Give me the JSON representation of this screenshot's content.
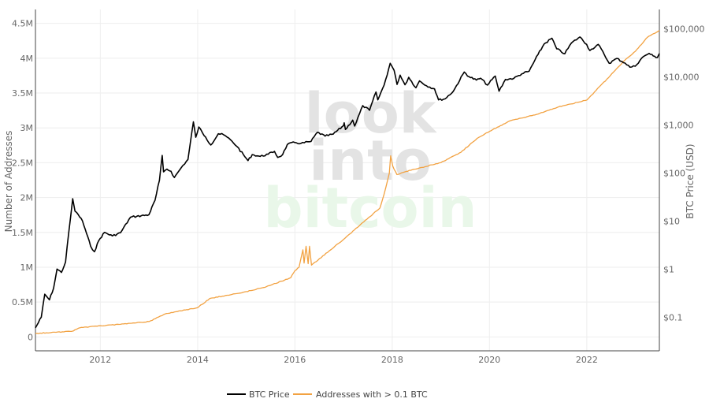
{
  "watermark": {
    "line1": "look",
    "line2": "into",
    "line3": "bitcoin"
  },
  "chart_data": {
    "type": "line",
    "title": "",
    "xlabel": "",
    "ylabel_left": "Number of Addresses",
    "ylabel_right": "BTC Price (USD)",
    "x_range": [
      "2010-09-01",
      "2023-06-30"
    ],
    "y_left_range": [
      -200000,
      4700000
    ],
    "y_right_range": [
      0.02,
      250000
    ],
    "y_right_scale": "log",
    "x_ticks": [
      "2012",
      "2014",
      "2016",
      "2018",
      "2020",
      "2022"
    ],
    "y_left_ticks": [
      "0",
      "0.5M",
      "1M",
      "1.5M",
      "2M",
      "2.5M",
      "3M",
      "3.5M",
      "4M",
      "4.5M"
    ],
    "y_right_ticks": [
      "$0.1",
      "$1",
      "$10",
      "$100",
      "$1,000",
      "$10,000",
      "$100,000"
    ],
    "grid": true,
    "legend_position": "bottom-center",
    "series": [
      {
        "name": "BTC Price",
        "axis": "right",
        "color": "#000000",
        "points": [
          [
            "2010-09-01",
            0.06
          ],
          [
            "2010-10-15",
            0.1
          ],
          [
            "2010-11-10",
            0.3
          ],
          [
            "2010-12-15",
            0.23
          ],
          [
            "2011-01-15",
            0.4
          ],
          [
            "2011-02-10",
            1.0
          ],
          [
            "2011-03-15",
            0.85
          ],
          [
            "2011-04-15",
            1.4
          ],
          [
            "2011-05-10",
            6.0
          ],
          [
            "2011-06-08",
            29.0
          ],
          [
            "2011-06-25",
            16.0
          ],
          [
            "2011-07-20",
            13.5
          ],
          [
            "2011-08-20",
            10.0
          ],
          [
            "2011-09-20",
            5.5
          ],
          [
            "2011-10-20",
            3.0
          ],
          [
            "2011-11-18",
            2.3
          ],
          [
            "2011-12-20",
            3.9
          ],
          [
            "2012-02-01",
            5.8
          ],
          [
            "2012-04-01",
            4.9
          ],
          [
            "2012-06-01",
            5.7
          ],
          [
            "2012-08-15",
            12.0
          ],
          [
            "2012-10-01",
            12.5
          ],
          [
            "2012-12-31",
            13.5
          ],
          [
            "2013-02-15",
            27.0
          ],
          [
            "2013-03-20",
            70.0
          ],
          [
            "2013-04-10",
            230.0
          ],
          [
            "2013-04-20",
            105.0
          ],
          [
            "2013-05-15",
            120.0
          ],
          [
            "2013-06-15",
            108.0
          ],
          [
            "2013-07-10",
            80.0
          ],
          [
            "2013-09-01",
            130.0
          ],
          [
            "2013-10-20",
            190.0
          ],
          [
            "2013-11-30",
            1150.0
          ],
          [
            "2013-12-18",
            550.0
          ],
          [
            "2014-01-10",
            900.0
          ],
          [
            "2014-02-10",
            650.0
          ],
          [
            "2014-03-01",
            560.0
          ],
          [
            "2014-04-10",
            380.0
          ],
          [
            "2014-06-05",
            650.0
          ],
          [
            "2014-07-15",
            620.0
          ],
          [
            "2014-09-15",
            460.0
          ],
          [
            "2014-10-25",
            350.0
          ],
          [
            "2015-01-14",
            180.0
          ],
          [
            "2015-02-15",
            240.0
          ],
          [
            "2015-04-15",
            220.0
          ],
          [
            "2015-06-15",
            245.0
          ],
          [
            "2015-08-01",
            280.0
          ],
          [
            "2015-08-25",
            210.0
          ],
          [
            "2015-10-01",
            240.0
          ],
          [
            "2015-11-05",
            390.0
          ],
          [
            "2015-12-31",
            430.0
          ],
          [
            "2016-02-15",
            410.0
          ],
          [
            "2016-05-01",
            450.0
          ],
          [
            "2016-06-18",
            700.0
          ],
          [
            "2016-08-15",
            580.0
          ],
          [
            "2016-10-15",
            640.0
          ],
          [
            "2016-12-31",
            960.0
          ],
          [
            "2017-01-05",
            1100.0
          ],
          [
            "2017-01-15",
            800.0
          ],
          [
            "2017-03-10",
            1250.0
          ],
          [
            "2017-03-25",
            940.0
          ],
          [
            "2017-05-25",
            2500.0
          ],
          [
            "2017-07-15",
            2000.0
          ],
          [
            "2017-09-01",
            4800.0
          ],
          [
            "2017-09-15",
            3300.0
          ],
          [
            "2017-11-01",
            6700.0
          ],
          [
            "2017-12-17",
            19000.0
          ],
          [
            "2018-01-15",
            13500.0
          ],
          [
            "2018-02-06",
            6900.0
          ],
          [
            "2018-03-01",
            10800.0
          ],
          [
            "2018-04-07",
            6800.0
          ],
          [
            "2018-05-05",
            9700.0
          ],
          [
            "2018-06-28",
            5900.0
          ],
          [
            "2018-07-25",
            8200.0
          ],
          [
            "2018-09-15",
            6500.0
          ],
          [
            "2018-11-15",
            5600.0
          ],
          [
            "2018-12-15",
            3300.0
          ],
          [
            "2019-02-01",
            3450.0
          ],
          [
            "2019-04-05",
            5000.0
          ],
          [
            "2019-06-26",
            12500.0
          ],
          [
            "2019-08-01",
            10000.0
          ],
          [
            "2019-09-25",
            8500.0
          ],
          [
            "2019-10-26",
            9300.0
          ],
          [
            "2019-12-17",
            6700.0
          ],
          [
            "2020-02-14",
            10300.0
          ],
          [
            "2020-03-13",
            5000.0
          ],
          [
            "2020-05-01",
            8800.0
          ],
          [
            "2020-07-01",
            9200.0
          ],
          [
            "2020-09-01",
            11500.0
          ],
          [
            "2020-10-25",
            13000.0
          ],
          [
            "2020-12-31",
            29000.0
          ],
          [
            "2021-02-15",
            48000.0
          ],
          [
            "2021-04-14",
            63000.0
          ],
          [
            "2021-05-20",
            38000.0
          ],
          [
            "2021-07-20",
            30000.0
          ],
          [
            "2021-09-07",
            50000.0
          ],
          [
            "2021-11-10",
            67000.0
          ],
          [
            "2021-12-31",
            47000.0
          ],
          [
            "2022-01-24",
            35000.0
          ],
          [
            "2022-03-28",
            47000.0
          ],
          [
            "2022-05-12",
            29000.0
          ],
          [
            "2022-06-18",
            19000.0
          ],
          [
            "2022-08-15",
            24000.0
          ],
          [
            "2022-10-15",
            19200.0
          ],
          [
            "2022-11-21",
            15800.0
          ],
          [
            "2022-12-31",
            16500.0
          ],
          [
            "2023-02-15",
            24000.0
          ],
          [
            "2023-03-20",
            28000.0
          ],
          [
            "2023-04-14",
            30500.0
          ],
          [
            "2023-05-15",
            27000.0
          ],
          [
            "2023-06-15",
            25000.0
          ],
          [
            "2023-06-30",
            30400.0
          ]
        ]
      },
      {
        "name": "Addresses with > 0.1 BTC",
        "axis": "left",
        "color": "#f2a242",
        "points": [
          [
            "2010-09-01",
            50000
          ],
          [
            "2011-06-01",
            80000
          ],
          [
            "2011-08-01",
            130000
          ],
          [
            "2012-01-01",
            160000
          ],
          [
            "2012-06-01",
            180000
          ],
          [
            "2013-01-01",
            220000
          ],
          [
            "2013-05-01",
            330000
          ],
          [
            "2014-01-01",
            420000
          ],
          [
            "2014-04-01",
            550000
          ],
          [
            "2015-01-01",
            650000
          ],
          [
            "2015-06-01",
            720000
          ],
          [
            "2015-12-01",
            850000
          ],
          [
            "2016-01-01",
            950000
          ],
          [
            "2016-02-01",
            1000000
          ],
          [
            "2016-03-01",
            1250000
          ],
          [
            "2016-03-10",
            1060000
          ],
          [
            "2016-03-25",
            1300000
          ],
          [
            "2016-04-10",
            1050000
          ],
          [
            "2016-04-20",
            1300000
          ],
          [
            "2016-05-05",
            1030000
          ],
          [
            "2017-01-01",
            1400000
          ],
          [
            "2017-06-01",
            1650000
          ],
          [
            "2017-10-01",
            1850000
          ],
          [
            "2017-11-01",
            2050000
          ],
          [
            "2017-12-10",
            2350000
          ],
          [
            "2017-12-20",
            2600000
          ],
          [
            "2018-01-05",
            2450000
          ],
          [
            "2018-02-05",
            2330000
          ],
          [
            "2018-06-01",
            2400000
          ],
          [
            "2019-01-01",
            2500000
          ],
          [
            "2019-06-01",
            2650000
          ],
          [
            "2019-10-01",
            2850000
          ],
          [
            "2020-01-01",
            2950000
          ],
          [
            "2020-06-01",
            3100000
          ],
          [
            "2021-01-01",
            3200000
          ],
          [
            "2021-06-01",
            3300000
          ],
          [
            "2022-01-01",
            3400000
          ],
          [
            "2022-06-01",
            3700000
          ],
          [
            "2022-10-01",
            3950000
          ],
          [
            "2023-01-01",
            4100000
          ],
          [
            "2023-04-01",
            4300000
          ],
          [
            "2023-06-30",
            4400000
          ]
        ]
      }
    ]
  }
}
